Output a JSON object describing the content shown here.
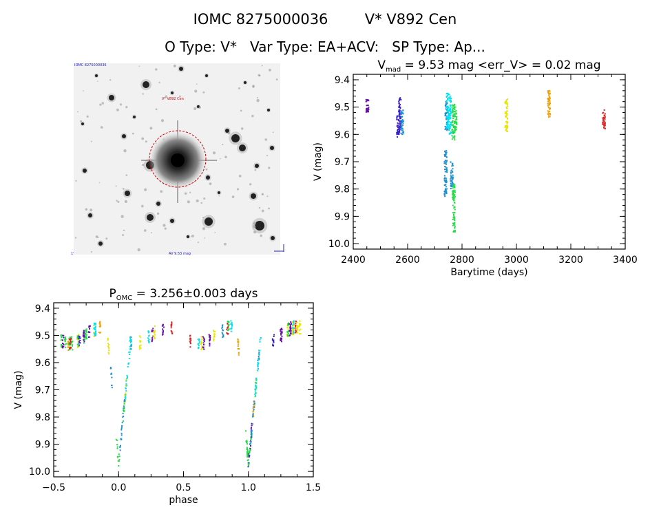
{
  "header": {
    "line1_id": "IOMC 8275000036",
    "line1_name": "V* V892 Cen",
    "line2": "O Type: V*   Var Type: EA+ACV:   SP Type: Ap..."
  },
  "image_panel": {
    "top_left_label": "IOMC 8275000036",
    "target_label": "V* V892 Cen",
    "bottom_center_label": "AV 9.53 mag",
    "bottom_left_label": "1'"
  },
  "colors": {
    "marker": "#cc0000",
    "series": [
      "#6a0dad",
      "#3a1ec8",
      "#1e90d0",
      "#00e0f0",
      "#22dd44",
      "#e6e600",
      "#f0a000",
      "#dd2020"
    ]
  },
  "chart_data": [
    {
      "type": "scatter",
      "title_main": "V",
      "title_sub": "mad",
      "title_rest": " = 9.53 mag <err_V> = 0.02 mag",
      "xlabel": "Barytime (days)",
      "ylabel": "V (mag)",
      "xlim": [
        2400,
        3400
      ],
      "ylim": [
        10.02,
        9.38
      ],
      "y_inverted": true,
      "xticks": [
        "2400",
        "2600",
        "2800",
        "3000",
        "3200",
        "3400"
      ],
      "yticks": [
        "9.4",
        "9.5",
        "9.6",
        "9.7",
        "9.8",
        "9.9",
        "10.0"
      ],
      "series": [
        {
          "color_index": 0,
          "x": 2452,
          "y": [
            9.47,
            9.52
          ]
        },
        {
          "color_index": 1,
          "x": 2565,
          "y": [
            9.53,
            9.61
          ]
        },
        {
          "color_index": 1,
          "x": 2572,
          "y": [
            9.46,
            9.59
          ]
        },
        {
          "color_index": 2,
          "x": 2580,
          "y": [
            9.51,
            9.6
          ]
        },
        {
          "color_index": 2,
          "x": 2743,
          "y": [
            9.48,
            9.59
          ]
        },
        {
          "color_index": 3,
          "x": 2748,
          "y": [
            9.45,
            9.58
          ]
        },
        {
          "color_index": 2,
          "x": 2740,
          "y": [
            9.66,
            9.83
          ]
        },
        {
          "color_index": 3,
          "x": 2756,
          "y": [
            9.46,
            9.6
          ]
        },
        {
          "color_index": 2,
          "x": 2762,
          "y": [
            9.7,
            9.8
          ]
        },
        {
          "color_index": 4,
          "x": 2768,
          "y": [
            9.49,
            9.62
          ]
        },
        {
          "color_index": 4,
          "x": 2770,
          "y": [
            9.78,
            9.96
          ]
        },
        {
          "color_index": 4,
          "x": 2776,
          "y": [
            9.5,
            9.59
          ]
        },
        {
          "color_index": 5,
          "x": 2963,
          "y": [
            9.47,
            9.59
          ]
        },
        {
          "color_index": 6,
          "x": 3120,
          "y": [
            9.44,
            9.54
          ]
        },
        {
          "color_index": 7,
          "x": 3322,
          "y": [
            9.51,
            9.58
          ]
        }
      ]
    },
    {
      "type": "scatter",
      "title_main": "P",
      "title_sub": "OMC",
      "title_rest": " = 3.256±0.003 days",
      "xlabel": "phase",
      "ylabel": "V (mag)",
      "xlim": [
        -0.5,
        1.5
      ],
      "ylim": [
        10.02,
        9.38
      ],
      "y_inverted": true,
      "xticks": [
        "−0.5",
        "0.0",
        "0.5",
        "1.0",
        "1.5"
      ],
      "yticks": [
        "9.4",
        "9.5",
        "9.6",
        "9.7",
        "9.8",
        "9.9",
        "10.0"
      ],
      "eclipse_center_phase": 0.0,
      "eclipse_depth_mag": 9.97,
      "out_of_eclipse_mag": 9.5
    }
  ]
}
